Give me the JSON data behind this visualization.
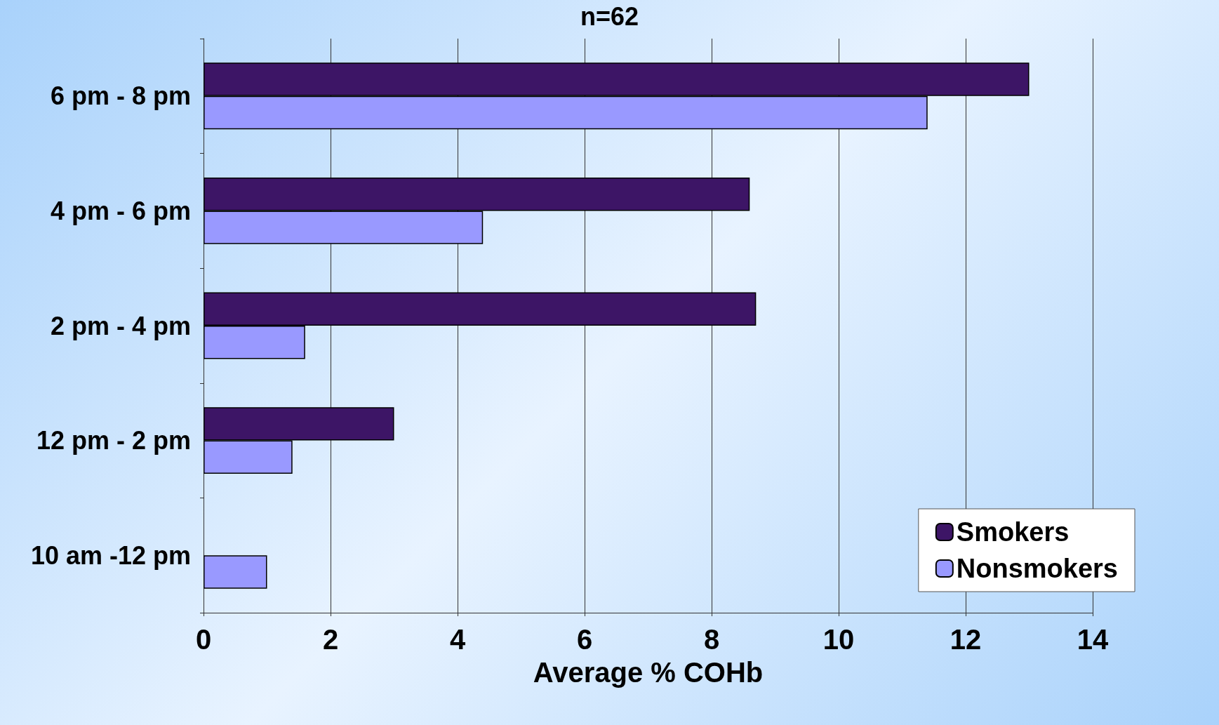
{
  "chart_data": {
    "type": "bar",
    "orientation": "horizontal",
    "title": "n=62",
    "xlabel": "Average % COHb",
    "categories": [
      "6 pm - 8 pm",
      "4 pm - 6 pm",
      "2 pm - 4 pm",
      "12 pm - 2 pm",
      "10 am -12 pm"
    ],
    "series": [
      {
        "name": "Smokers",
        "color": "#3d1566",
        "values": [
          13.0,
          8.6,
          8.7,
          3.0,
          null
        ]
      },
      {
        "name": "Nonsmokers",
        "color": "#9999ff",
        "values": [
          11.4,
          4.4,
          1.6,
          1.4,
          1.0
        ]
      }
    ],
    "xlim": [
      0,
      14
    ],
    "xticks": [
      0,
      2,
      4,
      6,
      8,
      10,
      12,
      14
    ],
    "grid": "x",
    "legend": "bottom right"
  }
}
